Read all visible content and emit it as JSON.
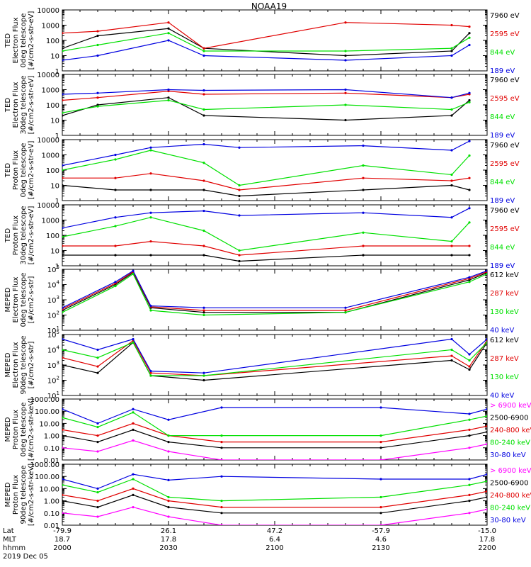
{
  "title": "NOAA19",
  "colors": {
    "black": "#000000",
    "red": "#e00000",
    "green": "#00e000",
    "blue": "#0000e0",
    "magenta": "#ff00ff"
  },
  "chart_data": [
    {
      "type": "line",
      "ylabel_lines": [
        "TED",
        "Electron Flux",
        "0deg telescope",
        "[#/cm2-s-str-eV]"
      ],
      "y_scale": "log",
      "ylim": [
        1,
        10000
      ],
      "ytick_labels": [
        "1",
        "10",
        "100",
        "1000",
        "10000"
      ],
      "legend": [
        {
          "label": "7960 eV",
          "color": "black"
        },
        {
          "label": "2595 eV",
          "color": "red"
        },
        {
          "label": "844 eV",
          "color": "green"
        },
        {
          "label": "189 eV",
          "color": "blue"
        }
      ],
      "x_time_hhmm": [
        "2000",
        "2010",
        "2030",
        "2040",
        "2120",
        "2150",
        "2155"
      ],
      "series": [
        {
          "name": "7960 eV",
          "color": "black",
          "values": [
            30,
            200,
            600,
            30,
            10,
            20,
            300
          ]
        },
        {
          "name": "2595 eV",
          "color": "red",
          "values": [
            300,
            400,
            1500,
            30,
            1500,
            1000,
            800
          ]
        },
        {
          "name": "844 eV",
          "color": "green",
          "values": [
            20,
            50,
            300,
            20,
            20,
            30,
            150
          ]
        },
        {
          "name": "189 eV",
          "color": "blue",
          "values": [
            5,
            10,
            100,
            10,
            5,
            10,
            50
          ]
        }
      ]
    },
    {
      "type": "line",
      "ylabel_lines": [
        "TED",
        "Electron Flux",
        "30deg telescope",
        "[#/cm2-s-str-eV]"
      ],
      "y_scale": "log",
      "ylim": [
        1,
        10000
      ],
      "ytick_labels": [
        "1",
        "10",
        "100",
        "1000",
        "10000"
      ],
      "legend": [
        {
          "label": "7960 eV",
          "color": "black"
        },
        {
          "label": "2595 eV",
          "color": "red"
        },
        {
          "label": "844 eV",
          "color": "green"
        },
        {
          "label": "189 eV",
          "color": "blue"
        }
      ],
      "x_time_hhmm": [
        "2000",
        "2010",
        "2030",
        "2040",
        "2120",
        "2150",
        "2155"
      ],
      "series": [
        {
          "name": "7960 eV",
          "color": "black",
          "values": [
            20,
            100,
            300,
            20,
            10,
            20,
            200
          ]
        },
        {
          "name": "2595 eV",
          "color": "red",
          "values": [
            200,
            300,
            800,
            500,
            600,
            300,
            500
          ]
        },
        {
          "name": "844 eV",
          "color": "green",
          "values": [
            30,
            80,
            200,
            50,
            100,
            50,
            150
          ]
        },
        {
          "name": "189 eV",
          "color": "blue",
          "values": [
            500,
            600,
            1000,
            900,
            1000,
            300,
            600
          ]
        }
      ]
    },
    {
      "type": "line",
      "ylabel_lines": [
        "TED",
        "Proton Flux",
        "0deg telescope",
        "[#/cm2-s-str-eV]"
      ],
      "y_scale": "log",
      "ylim": [
        1,
        10000
      ],
      "ytick_labels": [
        "1",
        "10",
        "100",
        "1000",
        "10000"
      ],
      "legend": [
        {
          "label": "7960 eV",
          "color": "black"
        },
        {
          "label": "2595 eV",
          "color": "red"
        },
        {
          "label": "844 eV",
          "color": "green"
        },
        {
          "label": "189 eV",
          "color": "blue"
        }
      ],
      "x_time_hhmm": [
        "2000",
        "2015",
        "2025",
        "2040",
        "2050",
        "2125",
        "2150",
        "2155"
      ],
      "series": [
        {
          "name": "7960 eV",
          "color": "black",
          "values": [
            10,
            5,
            5,
            5,
            2,
            5,
            10,
            5
          ]
        },
        {
          "name": "2595 eV",
          "color": "red",
          "values": [
            30,
            30,
            60,
            20,
            5,
            30,
            20,
            30
          ]
        },
        {
          "name": "844 eV",
          "color": "green",
          "values": [
            100,
            500,
            2000,
            300,
            10,
            200,
            50,
            900
          ]
        },
        {
          "name": "189 eV",
          "color": "blue",
          "values": [
            200,
            1000,
            3000,
            5000,
            3000,
            4000,
            2000,
            8000
          ]
        }
      ]
    },
    {
      "type": "line",
      "ylabel_lines": [
        "TED",
        "Proton Flux",
        "30deg telescope",
        "[#/cm2-s-str-eV]"
      ],
      "y_scale": "log",
      "ylim": [
        1,
        10000
      ],
      "ytick_labels": [
        "1",
        "10",
        "100",
        "1000",
        "10000"
      ],
      "legend": [
        {
          "label": "7960 eV",
          "color": "black"
        },
        {
          "label": "2595 eV",
          "color": "red"
        },
        {
          "label": "844 eV",
          "color": "green"
        },
        {
          "label": "189 eV",
          "color": "blue"
        }
      ],
      "x_time_hhmm": [
        "2000",
        "2015",
        "2025",
        "2040",
        "2050",
        "2125",
        "2150",
        "2155"
      ],
      "series": [
        {
          "name": "7960 eV",
          "color": "black",
          "values": [
            5,
            5,
            5,
            5,
            2,
            5,
            5,
            5
          ]
        },
        {
          "name": "2595 eV",
          "color": "red",
          "values": [
            20,
            20,
            40,
            20,
            5,
            20,
            20,
            20
          ]
        },
        {
          "name": "844 eV",
          "color": "green",
          "values": [
            80,
            400,
            1500,
            200,
            10,
            150,
            40,
            700
          ]
        },
        {
          "name": "189 eV",
          "color": "blue",
          "values": [
            300,
            1500,
            3000,
            4000,
            2000,
            3000,
            1500,
            6000
          ]
        }
      ]
    },
    {
      "type": "line",
      "ylabel_lines": [
        "MEPED",
        "Electron Flux",
        "0deg telescope",
        "[#/cm2-s-str]"
      ],
      "y_scale": "log",
      "ylim": [
        10,
        100000
      ],
      "ytick_labels": [
        "10^1",
        "10^2",
        "10^3",
        "10^4",
        "10^5"
      ],
      "legend": [
        {
          "label": "612 keV",
          "color": "black"
        },
        {
          "label": "287 keV",
          "color": "red"
        },
        {
          "label": "130 keV",
          "color": "green"
        },
        {
          "label": "40 keV",
          "color": "blue"
        }
      ],
      "x_time_hhmm": [
        "2000",
        "2015",
        "2020",
        "2025",
        "2040",
        "2120",
        "2155",
        "2200"
      ],
      "series": [
        {
          "name": "612 keV",
          "color": "black",
          "values": [
            200,
            10000,
            60000,
            300,
            150,
            150,
            20000,
            60000
          ]
        },
        {
          "name": "287 keV",
          "color": "red",
          "values": [
            250,
            12000,
            70000,
            350,
            200,
            200,
            25000,
            70000
          ]
        },
        {
          "name": "130 keV",
          "color": "green",
          "values": [
            150,
            8000,
            50000,
            200,
            100,
            150,
            15000,
            50000
          ]
        },
        {
          "name": "40 keV",
          "color": "blue",
          "values": [
            300,
            15000,
            80000,
            400,
            300,
            300,
            30000,
            80000
          ]
        }
      ]
    },
    {
      "type": "line",
      "ylabel_lines": [
        "MEPED",
        "Electron Flux",
        "90deg telescope",
        "[#/cm2-s-str]"
      ],
      "y_scale": "log",
      "ylim": [
        10,
        100000
      ],
      "ytick_labels": [
        "10^1",
        "10^2",
        "10^3",
        "10^4",
        "10^5"
      ],
      "legend": [
        {
          "label": "612 keV",
          "color": "black"
        },
        {
          "label": "287 keV",
          "color": "red"
        },
        {
          "label": "130 keV",
          "color": "green"
        },
        {
          "label": "40 keV",
          "color": "blue"
        }
      ],
      "x_time_hhmm": [
        "2000",
        "2010",
        "2020",
        "2025",
        "2040",
        "2150",
        "2155",
        "2200"
      ],
      "series": [
        {
          "name": "612 keV",
          "color": "black",
          "values": [
            1000,
            300,
            30000,
            200,
            100,
            2000,
            500,
            30000
          ]
        },
        {
          "name": "287 keV",
          "color": "red",
          "values": [
            3000,
            800,
            40000,
            300,
            200,
            4000,
            800,
            40000
          ]
        },
        {
          "name": "130 keV",
          "color": "green",
          "values": [
            10000,
            3000,
            30000,
            200,
            200,
            10000,
            2000,
            30000
          ]
        },
        {
          "name": "40 keV",
          "color": "blue",
          "values": [
            50000,
            10000,
            50000,
            400,
            300,
            50000,
            5000,
            50000
          ]
        }
      ]
    },
    {
      "type": "line",
      "ylabel_lines": [
        "MEPED",
        "Proton Flux",
        "0deg telescope",
        "[#/cm2-s-str-keV]"
      ],
      "y_scale": "log",
      "ylim": [
        0.01,
        1000
      ],
      "ytick_labels": [
        "0.01",
        "0.10",
        "1.00",
        "10.00",
        "100.00",
        "1000.00"
      ],
      "legend": [
        {
          "label": "> 6900 keV",
          "color": "magenta"
        },
        {
          "label": "2500-6900",
          "color": "black"
        },
        {
          "label": "240-800 keV",
          "color": "red"
        },
        {
          "label": "80-240 keV",
          "color": "green"
        },
        {
          "label": "30-80 keV",
          "color": "blue"
        }
      ],
      "x_time_hhmm": [
        "2000",
        "2010",
        "2020",
        "2030",
        "2045",
        "2130",
        "2155",
        "2200"
      ],
      "series": [
        {
          "name": "> 6900 keV",
          "color": "magenta",
          "values": [
            0.1,
            0.05,
            0.4,
            0.05,
            0.01,
            0.01,
            0.1,
            0.2
          ]
        },
        {
          "name": "2500-6900",
          "color": "black",
          "values": [
            1,
            0.3,
            3,
            0.3,
            0.1,
            0.1,
            1,
            2
          ]
        },
        {
          "name": "240-800 keV",
          "color": "red",
          "values": [
            3,
            1,
            10,
            1,
            0.3,
            0.3,
            3,
            6
          ]
        },
        {
          "name": "80-240 keV",
          "color": "green",
          "values": [
            30,
            5,
            80,
            1,
            1,
            1,
            20,
            40
          ]
        },
        {
          "name": "30-80 keV",
          "color": "blue",
          "values": [
            150,
            10,
            150,
            20,
            200,
            200,
            60,
            150
          ]
        }
      ]
    },
    {
      "type": "line",
      "ylabel_lines": [
        "MEPED",
        "Proton Flux",
        "90deg telescope",
        "[#/cm2-s-str-keV]"
      ],
      "y_scale": "log",
      "ylim": [
        0.01,
        1000
      ],
      "ytick_labels": [
        "0.01",
        "0.10",
        "1.00",
        "10.00",
        "100.00",
        "1000.00"
      ],
      "legend": [
        {
          "label": "> 6900 keV",
          "color": "magenta"
        },
        {
          "label": "2500-6900",
          "color": "black"
        },
        {
          "label": "240-800 keV",
          "color": "red"
        },
        {
          "label": "80-240 keV",
          "color": "green"
        },
        {
          "label": "30-80 keV",
          "color": "blue"
        }
      ],
      "x_time_hhmm": [
        "2000",
        "2010",
        "2020",
        "2030",
        "2045",
        "2130",
        "2155",
        "2200"
      ],
      "series": [
        {
          "name": "> 6900 keV",
          "color": "magenta",
          "values": [
            0.1,
            0.05,
            0.3,
            0.05,
            0.01,
            0.01,
            0.1,
            0.2
          ]
        },
        {
          "name": "2500-6900",
          "color": "black",
          "values": [
            1,
            0.3,
            3,
            0.3,
            0.1,
            0.1,
            1,
            2
          ]
        },
        {
          "name": "240-800 keV",
          "color": "red",
          "values": [
            3,
            1,
            10,
            1,
            0.3,
            0.3,
            3,
            6
          ]
        },
        {
          "name": "80-240 keV",
          "color": "green",
          "values": [
            20,
            5,
            60,
            2,
            1,
            2,
            20,
            40
          ]
        },
        {
          "name": "30-80 keV",
          "color": "blue",
          "values": [
            60,
            10,
            150,
            50,
            100,
            60,
            60,
            150
          ]
        }
      ]
    }
  ],
  "x_axis": {
    "row_labels": [
      "Lat",
      "MLT",
      "hhmm"
    ],
    "ticks": [
      {
        "lat": "-79.9",
        "mlt": "18.7",
        "hhmm": "2000"
      },
      {
        "lat": "26.1",
        "mlt": "17.8",
        "hhmm": "2030"
      },
      {
        "lat": "47.2",
        "mlt": "6.4",
        "hhmm": "2100"
      },
      {
        "lat": "-57.9",
        "mlt": "4.6",
        "hhmm": "2130"
      },
      {
        "lat": "-15.0",
        "mlt": "17.8",
        "hhmm": "2200"
      }
    ],
    "date_label": "2019 Dec 05"
  }
}
